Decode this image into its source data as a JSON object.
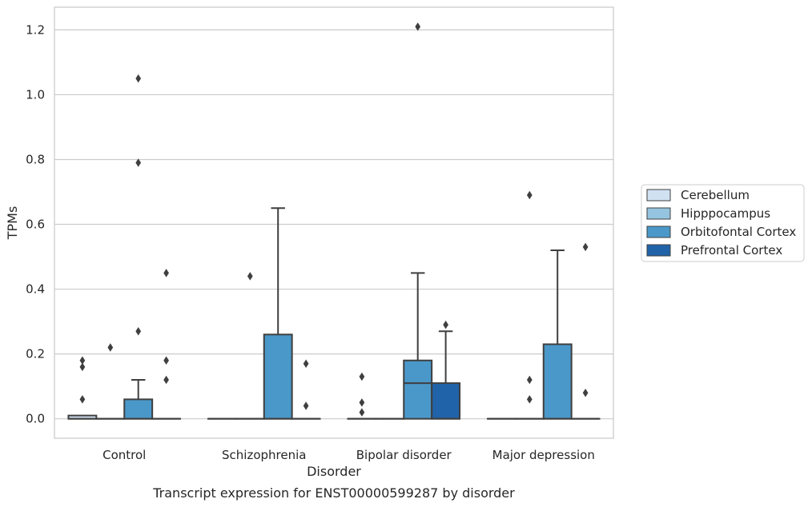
{
  "chart_data": {
    "type": "box",
    "xlabel": "Disorder",
    "ylabel": "TPMs",
    "caption": "Transcript expression for ENST00000599287 by disorder",
    "categories": [
      "Control",
      "Schizophrenia",
      "Bipolar disorder",
      "Major depression"
    ],
    "ylim": [
      -0.06,
      1.27
    ],
    "yticks": [
      0.0,
      0.2,
      0.4,
      0.6,
      0.8,
      1.0,
      1.2
    ],
    "ytick_labels": [
      "0.0",
      "0.2",
      "0.4",
      "0.6",
      "0.8",
      "1.0",
      "1.2"
    ],
    "grid": "horizontal",
    "legend_position": "right",
    "series": [
      {
        "name": "Cerebellum",
        "color": "#d0e1f2",
        "boxes": [
          {
            "q1": 0.0,
            "median": 0.0,
            "q3": 0.01,
            "whislo": 0.0,
            "whishi": 0.01,
            "fliers": [
              0.06,
              0.16,
              0.18
            ]
          },
          {
            "q1": 0.0,
            "median": 0.0,
            "q3": 0.0,
            "whislo": 0.0,
            "whishi": 0.0,
            "fliers": []
          },
          {
            "q1": 0.0,
            "median": 0.0,
            "q3": 0.0,
            "whislo": 0.0,
            "whishi": 0.0,
            "fliers": [
              0.02,
              0.05,
              0.13
            ]
          },
          {
            "q1": 0.0,
            "median": 0.0,
            "q3": 0.0,
            "whislo": 0.0,
            "whishi": 0.0,
            "fliers": []
          }
        ]
      },
      {
        "name": "Hipppocampus",
        "color": "#94c4df",
        "boxes": [
          {
            "q1": 0.0,
            "median": 0.0,
            "q3": 0.0,
            "whislo": 0.0,
            "whishi": 0.0,
            "fliers": [
              0.22
            ]
          },
          {
            "q1": 0.0,
            "median": 0.0,
            "q3": 0.0,
            "whislo": 0.0,
            "whishi": 0.0,
            "fliers": [
              0.44
            ]
          },
          {
            "q1": 0.0,
            "median": 0.0,
            "q3": 0.0,
            "whislo": 0.0,
            "whishi": 0.0,
            "fliers": []
          },
          {
            "q1": 0.0,
            "median": 0.0,
            "q3": 0.0,
            "whislo": 0.0,
            "whishi": 0.0,
            "fliers": [
              0.06,
              0.12,
              0.69
            ]
          }
        ]
      },
      {
        "name": "Orbitofontal Cortex",
        "color": "#4a98c9",
        "boxes": [
          {
            "q1": 0.0,
            "median": 0.0,
            "q3": 0.06,
            "whislo": 0.0,
            "whishi": 0.12,
            "fliers": [
              0.27,
              0.79,
              1.05
            ]
          },
          {
            "q1": 0.0,
            "median": 0.0,
            "q3": 0.26,
            "whislo": 0.0,
            "whishi": 0.65,
            "fliers": []
          },
          {
            "q1": 0.0,
            "median": 0.11,
            "q3": 0.18,
            "whislo": 0.0,
            "whishi": 0.45,
            "fliers": [
              1.21
            ]
          },
          {
            "q1": 0.0,
            "median": 0.0,
            "q3": 0.23,
            "whislo": 0.0,
            "whishi": 0.52,
            "fliers": []
          }
        ]
      },
      {
        "name": "Prefrontal Cortex",
        "color": "#2163a8",
        "boxes": [
          {
            "q1": 0.0,
            "median": 0.0,
            "q3": 0.0,
            "whislo": 0.0,
            "whishi": 0.0,
            "fliers": [
              0.12,
              0.18,
              0.45
            ]
          },
          {
            "q1": 0.0,
            "median": 0.0,
            "q3": 0.0,
            "whislo": 0.0,
            "whishi": 0.0,
            "fliers": [
              0.04,
              0.17
            ]
          },
          {
            "q1": 0.0,
            "median": 0.0,
            "q3": 0.11,
            "whislo": 0.0,
            "whishi": 0.27,
            "fliers": [
              0.29
            ]
          },
          {
            "q1": 0.0,
            "median": 0.0,
            "q3": 0.0,
            "whislo": 0.0,
            "whishi": 0.0,
            "fliers": [
              0.08,
              0.53
            ]
          }
        ]
      }
    ]
  }
}
